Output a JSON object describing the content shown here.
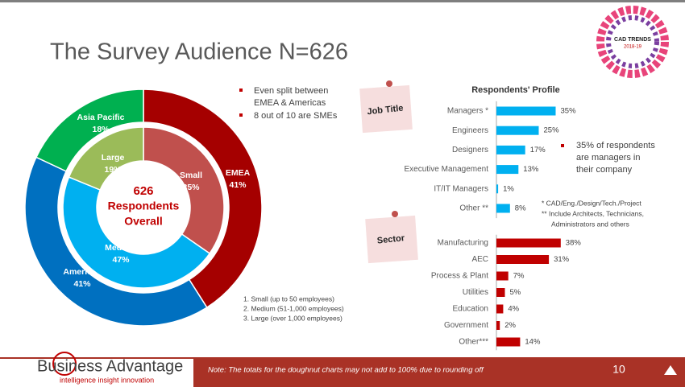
{
  "title": "The Survey Audience N=626",
  "bullets": [
    "Even split between",
    "EMEA & Americas",
    "8 out of 10 are SMEs"
  ],
  "center_label": [
    "626",
    "Respondents",
    "Overall"
  ],
  "size_notes": [
    "1.   Small (up to 50 employees)",
    "2.   Medium (51-1,000 employees)",
    "3.   Large (over 1,000 employees)"
  ],
  "profile_title": "Respondents' Profile",
  "callout": [
    "35% of respondents",
    "are managers in",
    "their company"
  ],
  "job_notes": [
    "* CAD/Eng./Design/Tech./Project",
    "** Include Architects, Technicians,",
    "Administrators and others"
  ],
  "footer": {
    "brand": "Business Advantage",
    "tagline": "intelligence insight innovation",
    "note": "Note: The totals for the doughnut charts may not add to 100% due to rounding off",
    "page": "10"
  },
  "badge": [
    "CAD TRENDS",
    "2018-19"
  ],
  "chart_data": [
    {
      "type": "donut",
      "name": "Region",
      "categories": [
        "EMEA",
        "Americas",
        "Asia Pacific"
      ],
      "values": [
        41,
        41,
        18
      ],
      "value_labels": [
        "41%",
        "41%",
        "18%"
      ],
      "colors": [
        "#a50000",
        "#0070c0",
        "#00b050"
      ]
    },
    {
      "type": "donut",
      "name": "Company size",
      "categories": [
        "Small",
        "Medium",
        "Large"
      ],
      "values": [
        35,
        47,
        19
      ],
      "value_labels": [
        "35%",
        "47%",
        "19%"
      ],
      "colors": [
        "#c0504d",
        "#00b0f0",
        "#9bbb59"
      ]
    },
    {
      "type": "bar",
      "title": "Job Title",
      "categories": [
        "Managers *",
        "Engineers",
        "Designers",
        "Executive Management",
        "IT/IT Managers",
        "Other **"
      ],
      "values": [
        35,
        25,
        17,
        13,
        1,
        8
      ],
      "value_labels": [
        "35%",
        "25%",
        "17%",
        "13%",
        "1%",
        "8%"
      ],
      "color": "#00b0f0"
    },
    {
      "type": "bar",
      "title": "Sector",
      "categories": [
        "Manufacturing",
        "AEC",
        "Process & Plant",
        "Utilities",
        "Education",
        "Government",
        "Other***"
      ],
      "values": [
        38,
        31,
        7,
        5,
        4,
        2,
        14
      ],
      "value_labels": [
        "38%",
        "31%",
        "7%",
        "5%",
        "4%",
        "2%",
        "14%"
      ],
      "color": "#c00000"
    }
  ]
}
